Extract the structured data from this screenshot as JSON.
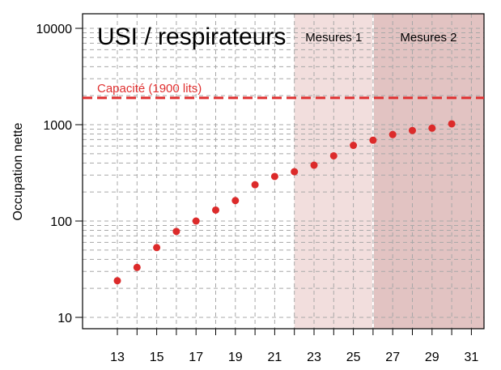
{
  "chart_data": {
    "type": "scatter",
    "title": "USI / respirateurs",
    "xlabel": "",
    "ylabel": "Occupation nette",
    "xlim": [
      11.5,
      32
    ],
    "ylim": [
      8,
      10000
    ],
    "y_scale": "log",
    "grid": true,
    "x_ticks": [
      13,
      14,
      15,
      16,
      17,
      18,
      19,
      20,
      21,
      22,
      23,
      24,
      25,
      26,
      27,
      28,
      29,
      30,
      31
    ],
    "x_tick_labels": [
      "13",
      "15",
      "17",
      "19",
      "21",
      "23",
      "25",
      "27",
      "29",
      "31"
    ],
    "y_tick_labels": [
      "10",
      "100",
      "1000",
      "10000"
    ],
    "capacity": {
      "value": 1900,
      "label": "Capacité (1900 lits)",
      "color": "#e03030"
    },
    "regions": [
      {
        "label": "Mesures 1",
        "from": 22,
        "to": 26,
        "color": "#f2dedd"
      },
      {
        "label": "Mesures 2",
        "from": 26,
        "to": 32,
        "color": "#e2c3c2"
      }
    ],
    "point_color": "#dc2a2a",
    "series": [
      {
        "x": [
          13,
          14,
          15,
          16,
          17,
          18,
          19,
          20,
          21,
          22,
          23,
          24,
          25,
          26,
          27,
          28,
          29,
          30
        ],
        "y": [
          24,
          33,
          53,
          78,
          100,
          130,
          163,
          238,
          290,
          325,
          380,
          475,
          610,
          690,
          790,
          870,
          920,
          1020
        ]
      }
    ]
  }
}
